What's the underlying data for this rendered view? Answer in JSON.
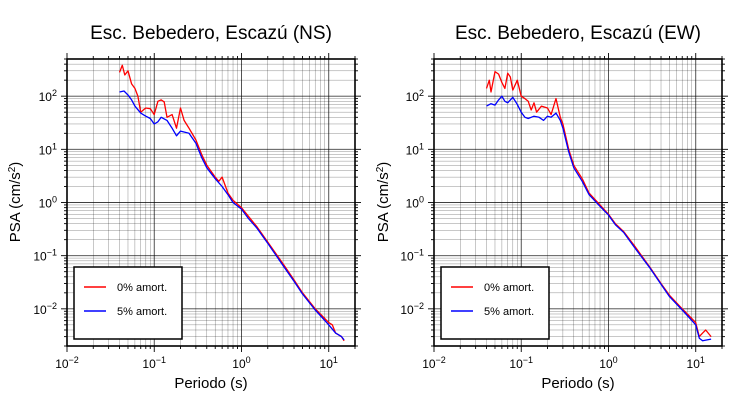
{
  "chart_data": [
    {
      "type": "line",
      "title": "Esc. Bebedero, Escazú (NS)",
      "xlabel": "Periodo (s)",
      "ylabel": "PSA (cm/s²)",
      "xscale": "log",
      "yscale": "log",
      "xlim": [
        0.01,
        20
      ],
      "ylim": [
        0.002,
        500
      ],
      "grid": true,
      "legend_position": "bottom-left",
      "x_ticks": [
        {
          "base": "10",
          "exp": "−2"
        },
        {
          "base": "10",
          "exp": "−1"
        },
        {
          "base": "10",
          "exp": "0"
        },
        {
          "base": "10",
          "exp": "1"
        }
      ],
      "y_ticks": [
        {
          "base": "10",
          "exp": "−2"
        },
        {
          "base": "10",
          "exp": "−1"
        },
        {
          "base": "10",
          "exp": "0"
        },
        {
          "base": "10",
          "exp": "1"
        },
        {
          "base": "10",
          "exp": "2"
        }
      ],
      "series": [
        {
          "name": "0% amort.",
          "color": "#ff0000",
          "points": [
            [
              0.04,
              280
            ],
            [
              0.043,
              380
            ],
            [
              0.046,
              250
            ],
            [
              0.05,
              300
            ],
            [
              0.055,
              170
            ],
            [
              0.06,
              140
            ],
            [
              0.065,
              100
            ],
            [
              0.07,
              50
            ],
            [
              0.075,
              55
            ],
            [
              0.08,
              60
            ],
            [
              0.09,
              58
            ],
            [
              0.1,
              45
            ],
            [
              0.11,
              80
            ],
            [
              0.12,
              85
            ],
            [
              0.13,
              78
            ],
            [
              0.14,
              40
            ],
            [
              0.16,
              45
            ],
            [
              0.18,
              25
            ],
            [
              0.2,
              60
            ],
            [
              0.22,
              35
            ],
            [
              0.25,
              25
            ],
            [
              0.3,
              15
            ],
            [
              0.35,
              8
            ],
            [
              0.4,
              5
            ],
            [
              0.5,
              3
            ],
            [
              0.55,
              2.5
            ],
            [
              0.6,
              3
            ],
            [
              0.7,
              1.5
            ],
            [
              0.8,
              1.1
            ],
            [
              1.0,
              0.8
            ],
            [
              1.2,
              0.55
            ],
            [
              1.5,
              0.35
            ],
            [
              2,
              0.18
            ],
            [
              3,
              0.07
            ],
            [
              4,
              0.035
            ],
            [
              5,
              0.02
            ],
            [
              7,
              0.01
            ],
            [
              8,
              0.008
            ],
            [
              10,
              0.0055
            ],
            [
              11,
              0.005
            ],
            [
              12,
              0.0035
            ],
            [
              14,
              0.003
            ],
            [
              15,
              0.0025
            ]
          ]
        },
        {
          "name": "5% amort.",
          "color": "#0000ff",
          "points": [
            [
              0.04,
              120
            ],
            [
              0.045,
              125
            ],
            [
              0.05,
              105
            ],
            [
              0.055,
              85
            ],
            [
              0.06,
              65
            ],
            [
              0.07,
              48
            ],
            [
              0.08,
              42
            ],
            [
              0.09,
              38
            ],
            [
              0.1,
              30
            ],
            [
              0.11,
              33
            ],
            [
              0.12,
              40
            ],
            [
              0.14,
              35
            ],
            [
              0.16,
              25
            ],
            [
              0.18,
              18
            ],
            [
              0.2,
              22
            ],
            [
              0.25,
              20
            ],
            [
              0.3,
              13
            ],
            [
              0.35,
              7
            ],
            [
              0.4,
              4.5
            ],
            [
              0.5,
              2.8
            ],
            [
              0.6,
              2
            ],
            [
              0.7,
              1.4
            ],
            [
              0.8,
              1.0
            ],
            [
              1.0,
              0.75
            ],
            [
              1.2,
              0.5
            ],
            [
              1.5,
              0.33
            ],
            [
              2,
              0.17
            ],
            [
              3,
              0.065
            ],
            [
              4,
              0.033
            ],
            [
              5,
              0.019
            ],
            [
              7,
              0.0095
            ],
            [
              8,
              0.0075
            ],
            [
              10,
              0.005
            ],
            [
              12,
              0.0035
            ],
            [
              14,
              0.003
            ],
            [
              15,
              0.0026
            ]
          ]
        }
      ]
    },
    {
      "type": "line",
      "title": "Esc. Bebedero, Escazú (EW)",
      "xlabel": "Periodo (s)",
      "ylabel": "PSA (cm/s²)",
      "xscale": "log",
      "yscale": "log",
      "xlim": [
        0.01,
        20
      ],
      "ylim": [
        0.002,
        500
      ],
      "grid": true,
      "legend_position": "bottom-left",
      "x_ticks": [
        {
          "base": "10",
          "exp": "−2"
        },
        {
          "base": "10",
          "exp": "−1"
        },
        {
          "base": "10",
          "exp": "0"
        },
        {
          "base": "10",
          "exp": "1"
        }
      ],
      "y_ticks": [
        {
          "base": "10",
          "exp": "−2"
        },
        {
          "base": "10",
          "exp": "−1"
        },
        {
          "base": "10",
          "exp": "0"
        },
        {
          "base": "10",
          "exp": "1"
        },
        {
          "base": "10",
          "exp": "2"
        }
      ],
      "series": [
        {
          "name": "0% amort.",
          "color": "#ff0000",
          "points": [
            [
              0.04,
              140
            ],
            [
              0.043,
              200
            ],
            [
              0.045,
              120
            ],
            [
              0.05,
              290
            ],
            [
              0.055,
              260
            ],
            [
              0.06,
              180
            ],
            [
              0.065,
              140
            ],
            [
              0.07,
              270
            ],
            [
              0.075,
              230
            ],
            [
              0.08,
              130
            ],
            [
              0.09,
              200
            ],
            [
              0.1,
              100
            ],
            [
              0.11,
              90
            ],
            [
              0.12,
              80
            ],
            [
              0.13,
              55
            ],
            [
              0.14,
              75
            ],
            [
              0.15,
              50
            ],
            [
              0.17,
              65
            ],
            [
              0.2,
              60
            ],
            [
              0.22,
              45
            ],
            [
              0.25,
              90
            ],
            [
              0.28,
              40
            ],
            [
              0.3,
              30
            ],
            [
              0.35,
              10
            ],
            [
              0.4,
              5
            ],
            [
              0.5,
              2.8
            ],
            [
              0.6,
              1.5
            ],
            [
              0.8,
              0.9
            ],
            [
              1.0,
              0.6
            ],
            [
              1.2,
              0.4
            ],
            [
              1.5,
              0.28
            ],
            [
              2,
              0.15
            ],
            [
              3,
              0.06
            ],
            [
              4,
              0.03
            ],
            [
              5,
              0.018
            ],
            [
              7,
              0.01
            ],
            [
              8,
              0.008
            ],
            [
              10,
              0.0055
            ],
            [
              11,
              0.003
            ],
            [
              12,
              0.0035
            ],
            [
              13,
              0.004
            ],
            [
              15,
              0.003
            ]
          ]
        },
        {
          "name": "5% amort.",
          "color": "#0000ff",
          "points": [
            [
              0.04,
              65
            ],
            [
              0.045,
              72
            ],
            [
              0.05,
              68
            ],
            [
              0.055,
              85
            ],
            [
              0.06,
              100
            ],
            [
              0.065,
              80
            ],
            [
              0.07,
              75
            ],
            [
              0.08,
              95
            ],
            [
              0.09,
              70
            ],
            [
              0.1,
              50
            ],
            [
              0.11,
              40
            ],
            [
              0.12,
              38
            ],
            [
              0.14,
              42
            ],
            [
              0.16,
              40
            ],
            [
              0.18,
              35
            ],
            [
              0.2,
              42
            ],
            [
              0.22,
              40
            ],
            [
              0.25,
              48
            ],
            [
              0.28,
              35
            ],
            [
              0.3,
              25
            ],
            [
              0.35,
              9
            ],
            [
              0.4,
              4.5
            ],
            [
              0.5,
              2.5
            ],
            [
              0.6,
              1.4
            ],
            [
              0.8,
              0.85
            ],
            [
              1.0,
              0.58
            ],
            [
              1.2,
              0.38
            ],
            [
              1.5,
              0.27
            ],
            [
              2,
              0.14
            ],
            [
              3,
              0.058
            ],
            [
              4,
              0.029
            ],
            [
              5,
              0.017
            ],
            [
              7,
              0.0095
            ],
            [
              8,
              0.0075
            ],
            [
              10,
              0.005
            ],
            [
              11,
              0.0028
            ],
            [
              12,
              0.0025
            ],
            [
              15,
              0.0027
            ]
          ]
        }
      ]
    }
  ]
}
